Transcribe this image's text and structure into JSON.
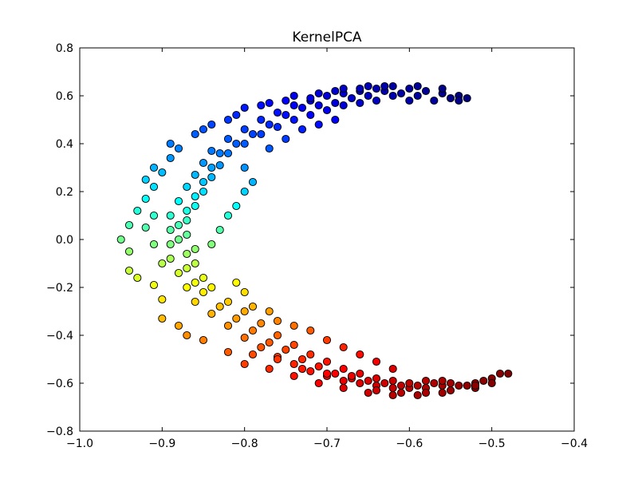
{
  "chart_data": {
    "type": "scatter",
    "title": "KernelPCA",
    "xlabel": "",
    "ylabel": "",
    "xlim": [
      -1.0,
      -0.4
    ],
    "ylim": [
      -0.8,
      0.8
    ],
    "xticks": [
      -1.0,
      -0.9,
      -0.8,
      -0.7,
      -0.6,
      -0.5,
      -0.4
    ],
    "yticks": [
      -0.8,
      -0.6,
      -0.4,
      -0.2,
      0.0,
      0.2,
      0.4,
      0.6,
      0.8
    ],
    "xtick_labels": [
      "−1.0",
      "−0.9",
      "−0.8",
      "−0.7",
      "−0.6",
      "−0.5",
      "−0.4"
    ],
    "ytick_labels": [
      "−0.8",
      "−0.6",
      "−0.4",
      "−0.2",
      "0.0",
      "0.2",
      "0.4",
      "0.6",
      "0.8"
    ],
    "grid": false,
    "colormap": "jet",
    "marker_edge_color": "#000000",
    "points": [
      [
        -0.53,
        0.59
      ],
      [
        -0.54,
        0.6
      ],
      [
        -0.56,
        0.61
      ],
      [
        -0.58,
        0.62
      ],
      [
        -0.6,
        0.63
      ],
      [
        -0.62,
        0.64
      ],
      [
        -0.64,
        0.63
      ],
      [
        -0.66,
        0.62
      ],
      [
        -0.68,
        0.61
      ],
      [
        -0.7,
        0.6
      ],
      [
        -0.72,
        0.58
      ],
      [
        -0.74,
        0.56
      ],
      [
        -0.76,
        0.53
      ],
      [
        -0.78,
        0.5
      ],
      [
        -0.8,
        0.46
      ],
      [
        -0.82,
        0.42
      ],
      [
        -0.84,
        0.37
      ],
      [
        -0.85,
        0.32
      ],
      [
        -0.86,
        0.27
      ],
      [
        -0.87,
        0.22
      ],
      [
        -0.88,
        0.16
      ],
      [
        -0.89,
        0.1
      ],
      [
        -0.89,
        0.04
      ],
      [
        -0.89,
        -0.02
      ],
      [
        -0.89,
        -0.08
      ],
      [
        -0.88,
        -0.14
      ],
      [
        -0.87,
        -0.2
      ],
      [
        -0.86,
        -0.26
      ],
      [
        -0.84,
        -0.31
      ],
      [
        -0.82,
        -0.36
      ],
      [
        -0.8,
        -0.41
      ],
      [
        -0.78,
        -0.45
      ],
      [
        -0.76,
        -0.49
      ],
      [
        -0.74,
        -0.52
      ],
      [
        -0.72,
        -0.55
      ],
      [
        -0.7,
        -0.57
      ],
      [
        -0.68,
        -0.59
      ],
      [
        -0.66,
        -0.6
      ],
      [
        -0.64,
        -0.61
      ],
      [
        -0.62,
        -0.62
      ],
      [
        -0.6,
        -0.62
      ],
      [
        -0.58,
        -0.62
      ],
      [
        -0.56,
        -0.61
      ],
      [
        -0.54,
        -0.61
      ],
      [
        -0.52,
        -0.6
      ],
      [
        -0.5,
        -0.58
      ],
      [
        -0.49,
        -0.56
      ],
      [
        -0.55,
        0.59
      ],
      [
        -0.57,
        0.58
      ],
      [
        -0.59,
        0.6
      ],
      [
        -0.61,
        0.61
      ],
      [
        -0.63,
        0.62
      ],
      [
        -0.65,
        0.6
      ],
      [
        -0.67,
        0.59
      ],
      [
        -0.69,
        0.57
      ],
      [
        -0.71,
        0.56
      ],
      [
        -0.73,
        0.55
      ],
      [
        -0.75,
        0.52
      ],
      [
        -0.77,
        0.48
      ],
      [
        -0.79,
        0.44
      ],
      [
        -0.81,
        0.4
      ],
      [
        -0.83,
        0.36
      ],
      [
        -0.84,
        0.3
      ],
      [
        -0.85,
        0.24
      ],
      [
        -0.86,
        0.18
      ],
      [
        -0.87,
        0.12
      ],
      [
        -0.88,
        0.06
      ],
      [
        -0.88,
        0.0
      ],
      [
        -0.87,
        -0.06
      ],
      [
        -0.87,
        -0.12
      ],
      [
        -0.86,
        -0.18
      ],
      [
        -0.85,
        -0.22
      ],
      [
        -0.83,
        -0.28
      ],
      [
        -0.81,
        -0.33
      ],
      [
        -0.79,
        -0.38
      ],
      [
        -0.77,
        -0.43
      ],
      [
        -0.75,
        -0.46
      ],
      [
        -0.73,
        -0.5
      ],
      [
        -0.71,
        -0.53
      ],
      [
        -0.69,
        -0.56
      ],
      [
        -0.67,
        -0.58
      ],
      [
        -0.65,
        -0.59
      ],
      [
        -0.63,
        -0.6
      ],
      [
        -0.61,
        -0.61
      ],
      [
        -0.59,
        -0.61
      ],
      [
        -0.57,
        -0.6
      ],
      [
        -0.55,
        -0.6
      ],
      [
        -0.53,
        -0.61
      ],
      [
        -0.51,
        -0.59
      ],
      [
        -0.6,
        0.58
      ],
      [
        -0.62,
        0.6
      ],
      [
        -0.64,
        0.58
      ],
      [
        -0.66,
        0.57
      ],
      [
        -0.68,
        0.56
      ],
      [
        -0.7,
        0.54
      ],
      [
        -0.72,
        0.52
      ],
      [
        -0.74,
        0.5
      ],
      [
        -0.76,
        0.47
      ],
      [
        -0.78,
        0.44
      ],
      [
        -0.8,
        0.4
      ],
      [
        -0.82,
        0.36
      ],
      [
        -0.83,
        0.31
      ],
      [
        -0.84,
        0.26
      ],
      [
        -0.85,
        0.2
      ],
      [
        -0.86,
        0.14
      ],
      [
        -0.87,
        0.08
      ],
      [
        -0.87,
        0.02
      ],
      [
        -0.86,
        -0.04
      ],
      [
        -0.86,
        -0.1
      ],
      [
        -0.85,
        -0.16
      ],
      [
        -0.84,
        -0.2
      ],
      [
        -0.82,
        -0.26
      ],
      [
        -0.8,
        -0.3
      ],
      [
        -0.78,
        -0.35
      ],
      [
        -0.76,
        -0.4
      ],
      [
        -0.74,
        -0.44
      ],
      [
        -0.72,
        -0.48
      ],
      [
        -0.7,
        -0.51
      ],
      [
        -0.68,
        -0.54
      ],
      [
        -0.66,
        -0.56
      ],
      [
        -0.64,
        -0.58
      ],
      [
        -0.62,
        -0.59
      ],
      [
        -0.6,
        -0.6
      ],
      [
        -0.58,
        -0.59
      ],
      [
        -0.56,
        -0.59
      ],
      [
        -0.94,
        0.06
      ],
      [
        -0.95,
        0.0
      ],
      [
        -0.94,
        -0.05
      ],
      [
        -0.93,
        0.12
      ],
      [
        -0.92,
        0.17
      ],
      [
        -0.91,
        0.22
      ],
      [
        -0.9,
        0.28
      ],
      [
        -0.89,
        0.34
      ],
      [
        -0.88,
        0.38
      ],
      [
        -0.86,
        0.44
      ],
      [
        -0.84,
        0.48
      ],
      [
        -0.81,
        0.52
      ],
      [
        -0.78,
        0.56
      ],
      [
        -0.75,
        0.58
      ],
      [
        -0.72,
        0.59
      ],
      [
        -0.69,
        0.62
      ],
      [
        -0.66,
        0.63
      ],
      [
        -0.63,
        0.64
      ],
      [
        -0.94,
        -0.13
      ],
      [
        -0.93,
        -0.16
      ],
      [
        -0.91,
        -0.19
      ],
      [
        -0.9,
        -0.25
      ],
      [
        -0.9,
        -0.33
      ],
      [
        -0.88,
        -0.36
      ],
      [
        -0.87,
        -0.4
      ],
      [
        -0.85,
        -0.42
      ],
      [
        -0.82,
        -0.47
      ],
      [
        -0.8,
        -0.52
      ],
      [
        -0.77,
        -0.54
      ],
      [
        -0.74,
        -0.57
      ],
      [
        -0.71,
        -0.6
      ],
      [
        -0.68,
        -0.62
      ],
      [
        -0.65,
        -0.64
      ],
      [
        -0.62,
        -0.65
      ],
      [
        -0.59,
        -0.65
      ],
      [
        -0.56,
        -0.64
      ],
      [
        -0.52,
        -0.62
      ],
      [
        -0.48,
        -0.56
      ],
      [
        -0.8,
        0.3
      ],
      [
        -0.79,
        0.24
      ],
      [
        -0.8,
        0.2
      ],
      [
        -0.81,
        0.14
      ],
      [
        -0.82,
        0.1
      ],
      [
        -0.83,
        0.04
      ],
      [
        -0.84,
        -0.02
      ],
      [
        -0.81,
        -0.18
      ],
      [
        -0.8,
        -0.22
      ],
      [
        -0.79,
        -0.28
      ],
      [
        -0.77,
        -0.3
      ],
      [
        -0.76,
        -0.34
      ],
      [
        -0.74,
        -0.36
      ],
      [
        -0.72,
        -0.38
      ],
      [
        -0.7,
        -0.42
      ],
      [
        -0.68,
        -0.45
      ],
      [
        -0.66,
        -0.48
      ],
      [
        -0.64,
        -0.51
      ],
      [
        -0.62,
        -0.54
      ],
      [
        -0.77,
        0.38
      ],
      [
        -0.75,
        0.42
      ],
      [
        -0.73,
        0.46
      ],
      [
        -0.71,
        0.48
      ],
      [
        -0.69,
        0.5
      ],
      [
        -0.92,
        0.05
      ],
      [
        -0.91,
        -0.02
      ],
      [
        -0.91,
        0.1
      ],
      [
        -0.9,
        -0.1
      ],
      [
        -0.92,
        0.25
      ],
      [
        -0.91,
        0.3
      ],
      [
        -0.89,
        0.4
      ],
      [
        -0.85,
        0.46
      ],
      [
        -0.82,
        0.5
      ],
      [
        -0.8,
        0.55
      ],
      [
        -0.77,
        0.57
      ],
      [
        -0.74,
        0.6
      ],
      [
        -0.71,
        0.61
      ],
      [
        -0.68,
        0.63
      ],
      [
        -0.65,
        0.64
      ],
      [
        -0.59,
        0.64
      ],
      [
        -0.56,
        0.63
      ],
      [
        -0.54,
        0.58
      ],
      [
        -0.79,
        -0.48
      ],
      [
        -0.76,
        -0.5
      ],
      [
        -0.73,
        -0.54
      ],
      [
        -0.7,
        -0.56
      ],
      [
        -0.67,
        -0.57
      ],
      [
        -0.64,
        -0.63
      ],
      [
        -0.61,
        -0.64
      ],
      [
        -0.58,
        -0.64
      ],
      [
        -0.55,
        -0.63
      ],
      [
        -0.52,
        -0.61
      ],
      [
        -0.5,
        -0.6
      ]
    ]
  }
}
